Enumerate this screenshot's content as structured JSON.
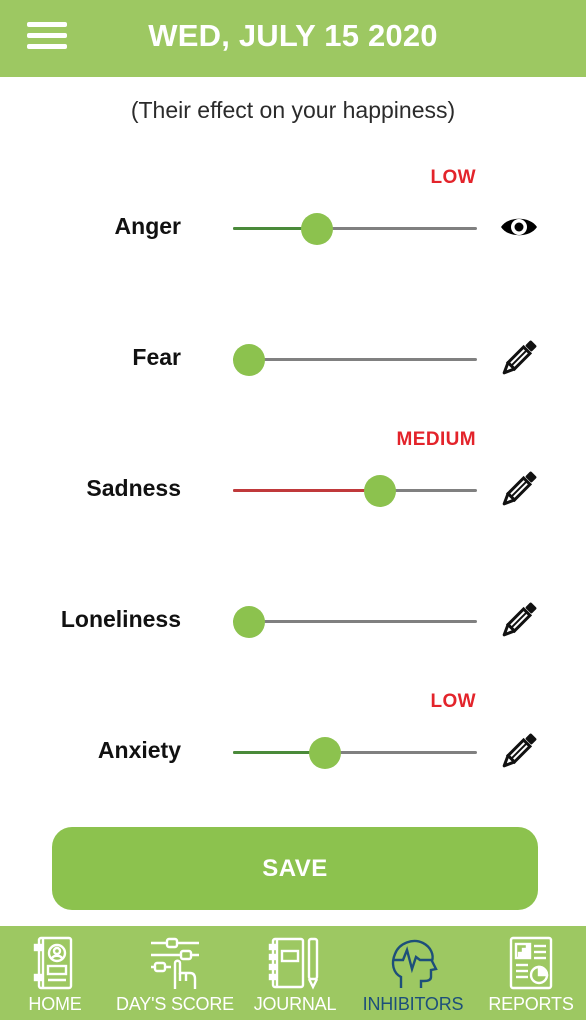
{
  "header": {
    "title": "WED, JULY 15 2020",
    "menu_icon": "hamburger-menu-icon"
  },
  "subtitle": "(Their effect on your happiness)",
  "emotions": [
    {
      "label": "Anger",
      "level": "LOW",
      "value": 0.32,
      "fill_color": "#4a8a3a",
      "action_icon": "eye-icon"
    },
    {
      "label": "Fear",
      "level": "",
      "value": 0.0,
      "fill_color": "#4a8a3a",
      "action_icon": "pencil-icon"
    },
    {
      "label": "Sadness",
      "level": "MEDIUM",
      "value": 0.62,
      "fill_color": "#c0393b",
      "action_icon": "pencil-icon"
    },
    {
      "label": "Loneliness",
      "level": "",
      "value": 0.0,
      "fill_color": "#4a8a3a",
      "action_icon": "pencil-icon"
    },
    {
      "label": "Anxiety",
      "level": "LOW",
      "value": 0.36,
      "fill_color": "#4a8a3a",
      "action_icon": "pencil-icon"
    }
  ],
  "save_label": "SAVE",
  "nav": [
    {
      "label": "HOME",
      "icon": "home-book-icon",
      "active": false
    },
    {
      "label": "DAY'S SCORE",
      "icon": "sliders-hand-icon",
      "active": false
    },
    {
      "label": "JOURNAL",
      "icon": "journal-pen-icon",
      "active": false
    },
    {
      "label": "INHIBITORS",
      "icon": "head-heartbeat-icon",
      "active": true
    },
    {
      "label": "REPORTS",
      "icon": "report-chart-icon",
      "active": false
    }
  ],
  "colors": {
    "brand_green": "#9dc862",
    "thumb_green": "#8cc24e",
    "level_red": "#e3242b",
    "active_nav": "#1d4f7a"
  }
}
